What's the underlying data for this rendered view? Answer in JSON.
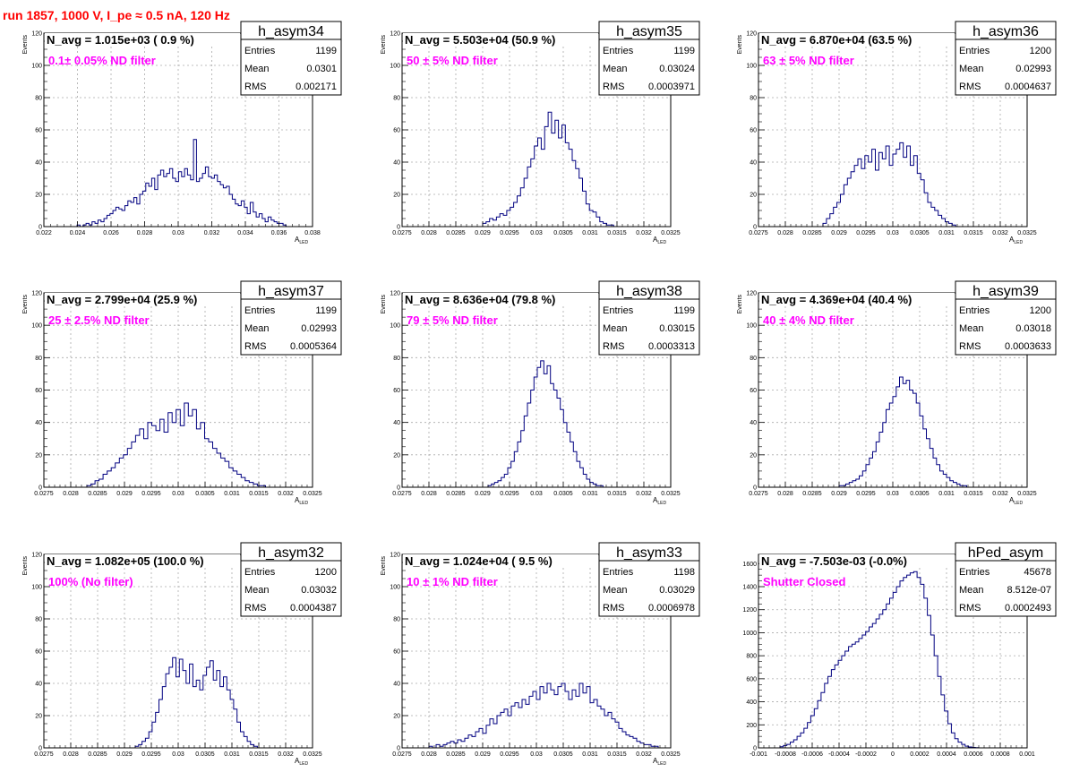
{
  "page_title": "run 1857,  1000 V, I_pe ≈ 0.5 nA, 120 Hz",
  "colors": {
    "title": "#ff0000",
    "hist": "#000080",
    "annotation": "#ff00ff",
    "grid": "#aaaaaa"
  },
  "stats_labels": {
    "entries": "Entries",
    "mean": "Mean",
    "rms": "RMS"
  },
  "chart_data": [
    {
      "type": "histogram",
      "name": "h_asym34",
      "navg": "N_avg = 1.015e+03 ( 0.9 %)",
      "filter": "0.1± 0.05% ND filter",
      "entries": "1199",
      "mean": "0.0301",
      "rms": "0.002171",
      "ylabel": "Events",
      "xlabel": "A",
      "xlabel_sub": "LED",
      "xlim": [
        0.022,
        0.038
      ],
      "ylim": [
        0,
        120
      ],
      "grid": true,
      "xticks": [
        0.022,
        0.024,
        0.026,
        0.028,
        0.03,
        0.032,
        0.034,
        0.036,
        0.038
      ],
      "xtick_labels": [
        "0.022",
        "0.024",
        "0.026",
        "0.028",
        "0.03",
        "0.032",
        "0.034",
        "0.036",
        "0.038"
      ],
      "yticks": [
        0,
        20,
        40,
        60,
        80,
        100,
        120
      ],
      "ytick_labels": [
        "0",
        "20",
        "40",
        "60",
        "80",
        "100",
        "120"
      ],
      "bin_edges": [
        0.0238,
        0.0366
      ],
      "counts": [
        0,
        1,
        0,
        1,
        2,
        1,
        3,
        2,
        4,
        3,
        5,
        7,
        8,
        10,
        12,
        11,
        10,
        13,
        16,
        15,
        18,
        14,
        20,
        22,
        27,
        25,
        30,
        23,
        32,
        35,
        31,
        33,
        36,
        30,
        28,
        34,
        31,
        36,
        32,
        29,
        54,
        28,
        30,
        33,
        37,
        31,
        30,
        32,
        28,
        26,
        24,
        25,
        20,
        17,
        14,
        13,
        16,
        12,
        8,
        15,
        9,
        6,
        8,
        5,
        3,
        6,
        4,
        3,
        2,
        2,
        1,
        0
      ]
    },
    {
      "type": "histogram",
      "name": "h_asym35",
      "navg": "N_avg = 5.503e+04 (50.9 %)",
      "filter": "50 ± 5% ND filter",
      "entries": "1199",
      "mean": "0.03024",
      "rms": "0.0003971",
      "ylabel": "Events",
      "xlabel": "A",
      "xlabel_sub": "LED",
      "xlim": [
        0.0275,
        0.0325
      ],
      "ylim": [
        0,
        120
      ],
      "grid": true,
      "xticks": [
        0.0275,
        0.028,
        0.0285,
        0.029,
        0.0295,
        0.03,
        0.0305,
        0.031,
        0.0315,
        0.032,
        0.0325
      ],
      "xtick_labels": [
        "0.0275",
        "0.028",
        "0.0285",
        "0.029",
        "0.0295",
        "0.03",
        "0.0305",
        "0.031",
        "0.0315",
        "0.032",
        "0.0325"
      ],
      "yticks": [
        0,
        20,
        40,
        60,
        80,
        100,
        120
      ],
      "ytick_labels": [
        "0",
        "20",
        "40",
        "60",
        "80",
        "100",
        "120"
      ],
      "bin_edges": [
        0.029,
        0.0315
      ],
      "counts": [
        2,
        3,
        5,
        4,
        6,
        8,
        7,
        10,
        12,
        15,
        19,
        24,
        30,
        37,
        42,
        50,
        55,
        48,
        62,
        71,
        58,
        66,
        55,
        63,
        52,
        48,
        41,
        36,
        30,
        22,
        14,
        10,
        9,
        6,
        3,
        2,
        1,
        1,
        0
      ]
    },
    {
      "type": "histogram",
      "name": "h_asym36",
      "navg": "N_avg = 6.870e+04 (63.5 %)",
      "filter": "63 ± 5% ND filter",
      "entries": "1200",
      "mean": "0.02993",
      "rms": "0.0004637",
      "ylabel": "Events",
      "xlabel": "A",
      "xlabel_sub": "LED",
      "xlim": [
        0.0275,
        0.0325
      ],
      "ylim": [
        0,
        120
      ],
      "grid": true,
      "xticks": [
        0.0275,
        0.028,
        0.0285,
        0.029,
        0.0295,
        0.03,
        0.0305,
        0.031,
        0.0315,
        0.032,
        0.0325
      ],
      "xtick_labels": [
        "0.0275",
        "0.028",
        "0.0285",
        "0.029",
        "0.0295",
        "0.03",
        "0.0305",
        "0.031",
        "0.0315",
        "0.032",
        "0.0325"
      ],
      "yticks": [
        0,
        20,
        40,
        60,
        80,
        100,
        120
      ],
      "ytick_labels": [
        "0",
        "20",
        "40",
        "60",
        "80",
        "100",
        "120"
      ],
      "bin_edges": [
        0.0287,
        0.0313
      ],
      "counts": [
        2,
        5,
        8,
        12,
        15,
        20,
        26,
        30,
        34,
        38,
        42,
        36,
        44,
        40,
        48,
        35,
        46,
        42,
        50,
        38,
        45,
        48,
        52,
        43,
        50,
        38,
        44,
        33,
        29,
        21,
        15,
        12,
        10,
        7,
        5,
        3,
        2,
        1,
        0,
        0
      ]
    },
    {
      "type": "histogram",
      "name": "h_asym37",
      "navg": "N_avg = 2.799e+04 (25.9 %)",
      "filter": "25 ± 2.5% ND filter",
      "entries": "1199",
      "mean": "0.02993",
      "rms": "0.0005364",
      "ylabel": "Events",
      "xlabel": "A",
      "xlabel_sub": "LED",
      "xlim": [
        0.0275,
        0.0325
      ],
      "ylim": [
        0,
        120
      ],
      "grid": true,
      "xticks": [
        0.0275,
        0.028,
        0.0285,
        0.029,
        0.0295,
        0.03,
        0.0305,
        0.031,
        0.0315,
        0.032,
        0.0325
      ],
      "xtick_labels": [
        "0.0275",
        "0.028",
        "0.0285",
        "0.029",
        "0.0295",
        "0.03",
        "0.0305",
        "0.031",
        "0.0315",
        "0.032",
        "0.0325"
      ],
      "yticks": [
        0,
        20,
        40,
        60,
        80,
        100,
        120
      ],
      "ytick_labels": [
        "0",
        "20",
        "40",
        "60",
        "80",
        "100",
        "120"
      ],
      "bin_edges": [
        0.0283,
        0.0317
      ],
      "counts": [
        1,
        2,
        4,
        5,
        8,
        10,
        12,
        15,
        18,
        20,
        24,
        28,
        32,
        36,
        30,
        40,
        38,
        35,
        42,
        34,
        46,
        40,
        48,
        38,
        52,
        44,
        48,
        36,
        40,
        30,
        28,
        24,
        21,
        18,
        16,
        12,
        10,
        8,
        6,
        4,
        3,
        2,
        1,
        1,
        0
      ]
    },
    {
      "type": "histogram",
      "name": "h_asym38",
      "navg": "N_avg = 8.636e+04 (79.8 %)",
      "filter": "79 ± 5% ND filter",
      "entries": "1199",
      "mean": "0.03015",
      "rms": "0.0003313",
      "ylabel": "Events",
      "xlabel": "A",
      "xlabel_sub": "LED",
      "xlim": [
        0.0275,
        0.0325
      ],
      "ylim": [
        0,
        120
      ],
      "grid": true,
      "xticks": [
        0.0275,
        0.028,
        0.0285,
        0.029,
        0.0295,
        0.03,
        0.0305,
        0.031,
        0.0315,
        0.032,
        0.0325
      ],
      "xtick_labels": [
        "0.0275",
        "0.028",
        "0.0285",
        "0.029",
        "0.0295",
        "0.03",
        "0.0305",
        "0.031",
        "0.0315",
        "0.032",
        "0.0325"
      ],
      "yticks": [
        0,
        20,
        40,
        60,
        80,
        100,
        120
      ],
      "ytick_labels": [
        "0",
        "20",
        "40",
        "60",
        "80",
        "100",
        "120"
      ],
      "bin_edges": [
        0.0291,
        0.0313
      ],
      "counts": [
        1,
        2,
        3,
        4,
        6,
        8,
        12,
        16,
        22,
        28,
        35,
        44,
        52,
        60,
        68,
        74,
        78,
        70,
        75,
        64,
        60,
        55,
        48,
        40,
        34,
        28,
        22,
        16,
        12,
        8,
        5,
        3,
        2,
        1,
        1,
        0
      ]
    },
    {
      "type": "histogram",
      "name": "h_asym39",
      "navg": "N_avg = 4.369e+04 (40.4 %)",
      "filter": "40 ± 4% ND filter",
      "entries": "1200",
      "mean": "0.03018",
      "rms": "0.0003633",
      "ylabel": "Events",
      "xlabel": "A",
      "xlabel_sub": "LED",
      "xlim": [
        0.0275,
        0.0325
      ],
      "ylim": [
        0,
        120
      ],
      "grid": true,
      "xticks": [
        0.0275,
        0.028,
        0.0285,
        0.029,
        0.0295,
        0.03,
        0.0305,
        0.031,
        0.0315,
        0.032,
        0.0325
      ],
      "xtick_labels": [
        "0.0275",
        "0.028",
        "0.0285",
        "0.029",
        "0.0295",
        "0.03",
        "0.0305",
        "0.031",
        "0.0315",
        "0.032",
        "0.0325"
      ],
      "yticks": [
        0,
        20,
        40,
        60,
        80,
        100,
        120
      ],
      "ytick_labels": [
        "0",
        "20",
        "40",
        "60",
        "80",
        "100",
        "120"
      ],
      "bin_edges": [
        0.029,
        0.0315
      ],
      "counts": [
        1,
        1,
        2,
        3,
        4,
        5,
        7,
        10,
        14,
        18,
        22,
        28,
        34,
        40,
        48,
        52,
        56,
        62,
        68,
        64,
        66,
        60,
        58,
        52,
        44,
        36,
        30,
        24,
        18,
        14,
        10,
        8,
        6,
        4,
        3,
        2,
        1,
        1,
        0,
        0
      ]
    },
    {
      "type": "histogram",
      "name": "h_asym32",
      "navg": "N_avg = 1.082e+05 (100.0 %)",
      "filter": "100% (No filter)",
      "entries": "1200",
      "mean": "0.03032",
      "rms": "0.0004387",
      "ylabel": "Events",
      "xlabel": "A",
      "xlabel_sub": "LED",
      "xlim": [
        0.0275,
        0.0325
      ],
      "ylim": [
        0,
        120
      ],
      "grid": true,
      "xticks": [
        0.0275,
        0.028,
        0.0285,
        0.029,
        0.0295,
        0.03,
        0.0305,
        0.031,
        0.0315,
        0.032,
        0.0325
      ],
      "xtick_labels": [
        "0.0275",
        "0.028",
        "0.0285",
        "0.029",
        "0.0295",
        "0.03",
        "0.0305",
        "0.031",
        "0.0315",
        "0.032",
        "0.0325"
      ],
      "yticks": [
        0,
        20,
        40,
        60,
        80,
        100,
        120
      ],
      "ytick_labels": [
        "0",
        "20",
        "40",
        "60",
        "80",
        "100",
        "120"
      ],
      "bin_edges": [
        0.0292,
        0.0316
      ],
      "counts": [
        1,
        2,
        4,
        6,
        10,
        16,
        22,
        30,
        38,
        46,
        50,
        56,
        44,
        55,
        48,
        40,
        52,
        38,
        42,
        36,
        45,
        50,
        54,
        42,
        48,
        38,
        44,
        36,
        30,
        24,
        16,
        10,
        7,
        4,
        2,
        1,
        0,
        0
      ]
    },
    {
      "type": "histogram",
      "name": "h_asym33",
      "navg": "N_avg = 1.024e+04 ( 9.5 %)",
      "filter": "10 ± 1% ND filter",
      "entries": "1198",
      "mean": "0.03029",
      "rms": "0.0006978",
      "ylabel": "Events",
      "xlabel": "A",
      "xlabel_sub": "LED",
      "xlim": [
        0.0275,
        0.0325
      ],
      "ylim": [
        0,
        120
      ],
      "grid": true,
      "xticks": [
        0.0275,
        0.028,
        0.0285,
        0.029,
        0.0295,
        0.03,
        0.0305,
        0.031,
        0.0315,
        0.032,
        0.0325
      ],
      "xtick_labels": [
        "0.0275",
        "0.028",
        "0.0285",
        "0.029",
        "0.0295",
        "0.03",
        "0.0305",
        "0.031",
        "0.0315",
        "0.032",
        "0.0325"
      ],
      "yticks": [
        0,
        20,
        40,
        60,
        80,
        100,
        120
      ],
      "ytick_labels": [
        "0",
        "20",
        "40",
        "60",
        "80",
        "100",
        "120"
      ],
      "bin_edges": [
        0.028,
        0.0324
      ],
      "counts": [
        1,
        0,
        2,
        1,
        2,
        3,
        4,
        3,
        5,
        4,
        6,
        8,
        7,
        10,
        12,
        9,
        14,
        18,
        15,
        20,
        22,
        24,
        20,
        26,
        28,
        25,
        30,
        27,
        32,
        35,
        30,
        38,
        34,
        40,
        36,
        33,
        38,
        40,
        35,
        30,
        36,
        32,
        40,
        34,
        38,
        28,
        30,
        26,
        24,
        20,
        22,
        18,
        16,
        12,
        10,
        8,
        7,
        6,
        4,
        3,
        2,
        2,
        1,
        1,
        0,
        0
      ]
    },
    {
      "type": "histogram",
      "name": "hPed_asym",
      "navg": "N_avg = -7.503e-03 (-0.0%)",
      "filter": "Shutter Closed",
      "entries": "45678",
      "mean": "8.512e-07",
      "rms": "0.0002493",
      "ylabel": "",
      "xlabel": "",
      "xlabel_sub": "",
      "xlim": [
        -0.001,
        0.001
      ],
      "ylim": [
        0,
        1680
      ],
      "grid": true,
      "xticks": [
        -0.001,
        -0.0008,
        -0.0006,
        -0.0004,
        -0.0002,
        0,
        0.0002,
        0.0004,
        0.0006,
        0.0008,
        0.001
      ],
      "xtick_labels": [
        "-0.001",
        "-0.0008",
        "-0.0006",
        "-0.0004",
        "-0.0002",
        "0",
        "0.0002",
        "0.0004",
        "0.0006",
        "0.0008",
        "0.001"
      ],
      "yticks": [
        0,
        200,
        400,
        600,
        800,
        1000,
        1200,
        1400,
        1600
      ],
      "ytick_labels": [
        "0",
        "200",
        "400",
        "600",
        "800",
        "1000",
        "1200",
        "1400",
        "1600"
      ],
      "bin_edges": [
        -0.00084,
        0.00064
      ],
      "counts": [
        10,
        20,
        30,
        50,
        70,
        100,
        130,
        170,
        220,
        280,
        340,
        410,
        480,
        560,
        620,
        680,
        720,
        760,
        800,
        840,
        880,
        900,
        920,
        950,
        980,
        1010,
        1050,
        1080,
        1120,
        1160,
        1200,
        1250,
        1300,
        1350,
        1400,
        1450,
        1480,
        1500,
        1520,
        1530,
        1480,
        1420,
        1300,
        1150,
        980,
        800,
        620,
        460,
        320,
        210,
        130,
        80,
        50,
        30,
        15,
        8,
        4,
        2
      ]
    }
  ]
}
